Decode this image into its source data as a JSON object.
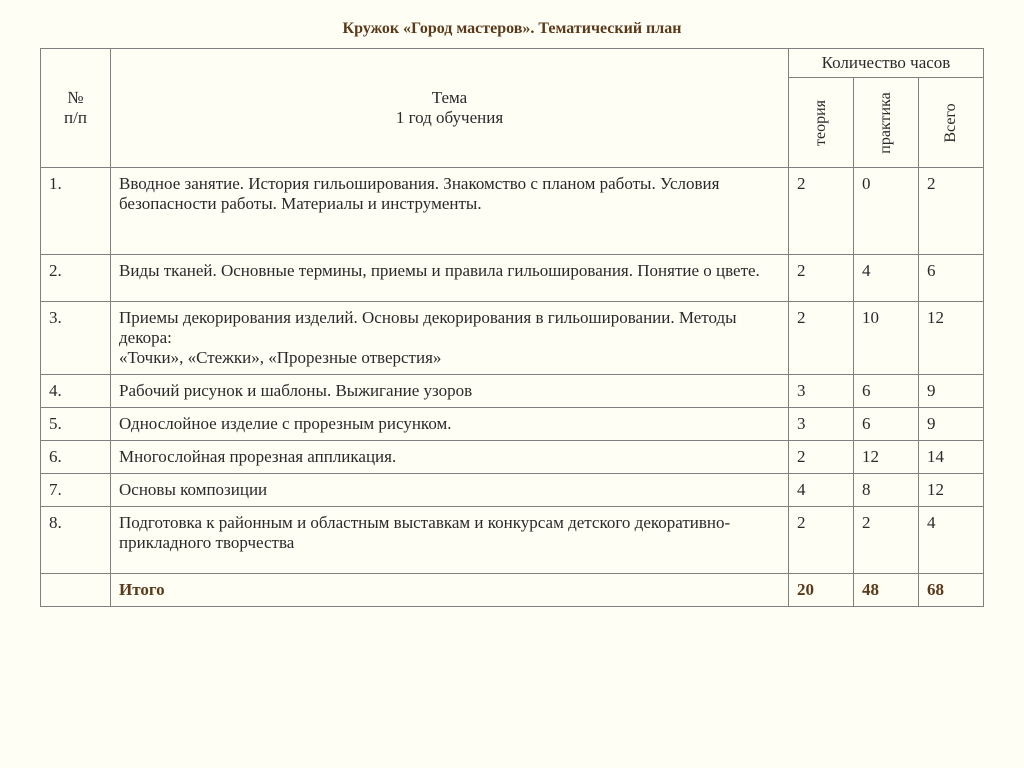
{
  "title": "Кружок  «Город мастеров». Тематический план",
  "table": {
    "headers": {
      "num": "№\nп/п",
      "topic": "Тема\n1 год обучения",
      "hours_group": "Количество часов",
      "theory": "теория",
      "practice": "практика",
      "total": "Всего"
    },
    "rows": [
      {
        "num": "1.",
        "topic": "Вводное занятие.  История гильоширования.  Знакомство с планом работы. Условия безопасности работы. Материалы и инструменты.",
        "theory": "2",
        "practice": "0",
        "total": "2",
        "class": "row-tall"
      },
      {
        "num": "2.",
        "topic": "Виды тканей. Основные термины, приемы и правила гильоширования. Понятие о цвете.",
        "theory": "2",
        "practice": "4",
        "total": "6",
        "class": "row-med"
      },
      {
        "num": "3.",
        "topic": "Приемы декорирования изделий. Основы декорирования в гильошировании.  Методы декора:\n «Точки», «Стежки», «Прорезные отверстия»",
        "theory": "2",
        "practice": "10",
        "total": "12",
        "class": ""
      },
      {
        "num": "4.",
        "topic": "Рабочий рисунок и шаблоны. Выжигание узоров",
        "theory": "3",
        "practice": "6",
        "total": "9",
        "class": ""
      },
      {
        "num": "5.",
        "topic": "Однослойное изделие с  прорезным рисунком.",
        "theory": "3",
        "practice": "6",
        "total": "9",
        "class": ""
      },
      {
        "num": "6.",
        "topic": "Многослойная прорезная аппликация.",
        "theory": "2",
        "practice": "12",
        "total": "14",
        "class": ""
      },
      {
        "num": "7.",
        "topic": "Основы композиции",
        "theory": "4",
        "practice": "8",
        "total": "12",
        "class": ""
      },
      {
        "num": "8.",
        "topic": " Подготовка к районным и областным выставкам и конкурсам детского декоративно-прикладного творчества",
        "theory": "2",
        "practice": "2",
        "total": "4",
        "class": "row-med"
      }
    ],
    "footer": {
      "label": "Итого",
      "theory": "20",
      "practice": "48",
      "total": "68"
    }
  },
  "styling": {
    "background_color": "#fffef5",
    "border_color": "#808080",
    "title_color": "#5a3a1a",
    "text_color": "#2a2a2a",
    "font_family": "Times New Roman",
    "body_fontsize": 17,
    "title_fontsize": 16,
    "column_widths": {
      "num": 70,
      "hours": 65
    }
  }
}
